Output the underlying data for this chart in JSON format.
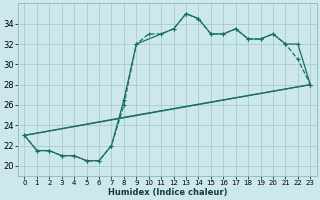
{
  "title": "",
  "xlabel": "Humidex (Indice chaleur)",
  "bg_color": "#cce8ec",
  "grid_color": "#aacccc",
  "line_color": "#1a7060",
  "xlim": [
    -0.5,
    23.5
  ],
  "ylim": [
    19.0,
    36.0
  ],
  "xticks": [
    0,
    1,
    2,
    3,
    4,
    5,
    6,
    7,
    8,
    9,
    10,
    11,
    12,
    13,
    14,
    15,
    16,
    17,
    18,
    19,
    20,
    21,
    22,
    23
  ],
  "yticks": [
    20,
    22,
    24,
    26,
    28,
    30,
    32,
    34
  ],
  "series1_x": [
    0,
    1,
    2,
    3,
    4,
    5,
    6,
    7,
    8,
    9,
    10,
    11,
    12,
    13,
    14,
    15,
    16,
    17,
    18,
    19,
    20,
    21,
    22,
    23
  ],
  "series1_y": [
    23.0,
    21.5,
    21.5,
    21.0,
    21.0,
    20.5,
    20.5,
    22.0,
    26.0,
    32.0,
    33.0,
    33.0,
    33.5,
    35.0,
    34.5,
    33.0,
    33.0,
    33.5,
    32.5,
    32.5,
    33.0,
    32.0,
    30.5,
    28.0
  ],
  "series2_x": [
    0,
    1,
    2,
    3,
    4,
    5,
    6,
    7,
    8,
    9,
    12,
    13,
    14,
    15,
    16,
    17,
    18,
    19,
    20,
    21,
    22,
    23
  ],
  "series2_y": [
    23.0,
    21.5,
    21.5,
    21.0,
    21.0,
    20.5,
    20.5,
    22.0,
    26.5,
    32.0,
    33.5,
    35.0,
    34.5,
    33.0,
    33.0,
    33.5,
    32.5,
    32.5,
    33.0,
    32.0,
    32.0,
    28.0
  ],
  "series3_x": [
    0,
    23
  ],
  "series3_y": [
    23.0,
    28.0
  ],
  "series4_x": [
    0,
    9,
    23
  ],
  "series4_y": [
    23.0,
    25.0,
    28.0
  ]
}
